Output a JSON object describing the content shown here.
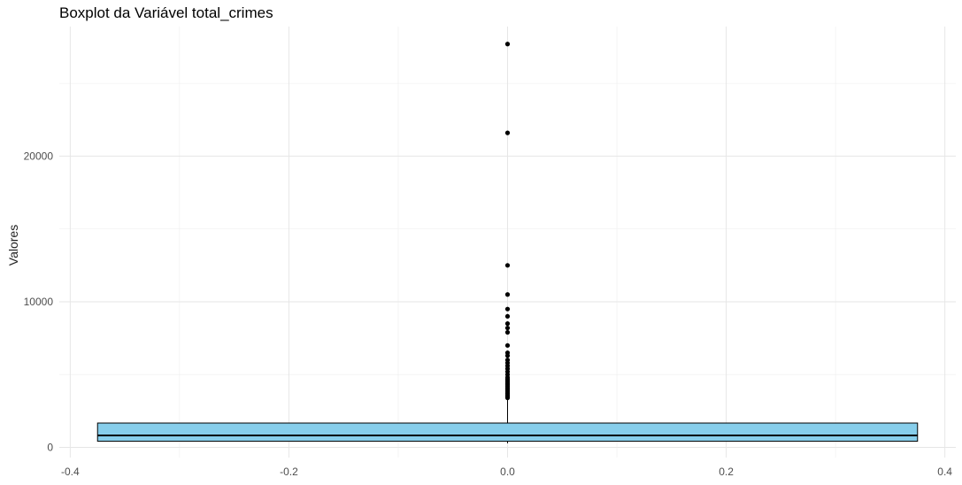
{
  "chart_data": {
    "type": "boxplot",
    "title": "Boxplot da Variável total_crimes",
    "xlabel": "",
    "ylabel": "Valores",
    "xlim": [
      -0.41,
      0.41
    ],
    "ylim": [
      -700,
      28900
    ],
    "x_ticks": [
      -0.4,
      -0.2,
      0.0,
      0.2,
      0.4
    ],
    "x_tick_labels": [
      "-0.4",
      "-0.2",
      "0.0",
      "0.2",
      "0.4"
    ],
    "y_ticks": [
      0,
      10000,
      20000
    ],
    "y_tick_labels": [
      "0",
      "10000",
      "20000"
    ],
    "y_minor_ticks": [
      5000,
      15000,
      25000
    ],
    "x_minor_ticks": [
      -0.3,
      -0.1,
      0.1,
      0.3
    ],
    "grid": true,
    "box": {
      "x_center": 0.0,
      "x_min": -0.375,
      "x_max": 0.375,
      "whisker_low": 280,
      "q1": 420,
      "median": 820,
      "q3": 1670,
      "whisker_high": 3350,
      "fill_color": "#87CEEB",
      "line_color": "#000000"
    },
    "outliers": [
      27700,
      21600,
      12500,
      10500,
      9500,
      9000,
      8500,
      8200,
      7900,
      7000,
      6500,
      6300,
      6000,
      5800,
      5600,
      5400,
      5200,
      5000,
      4800,
      4700,
      4600,
      4500,
      4400,
      4300,
      4200,
      4100,
      4000,
      3900,
      3800,
      3700,
      3600,
      3500,
      3450,
      3400
    ]
  }
}
